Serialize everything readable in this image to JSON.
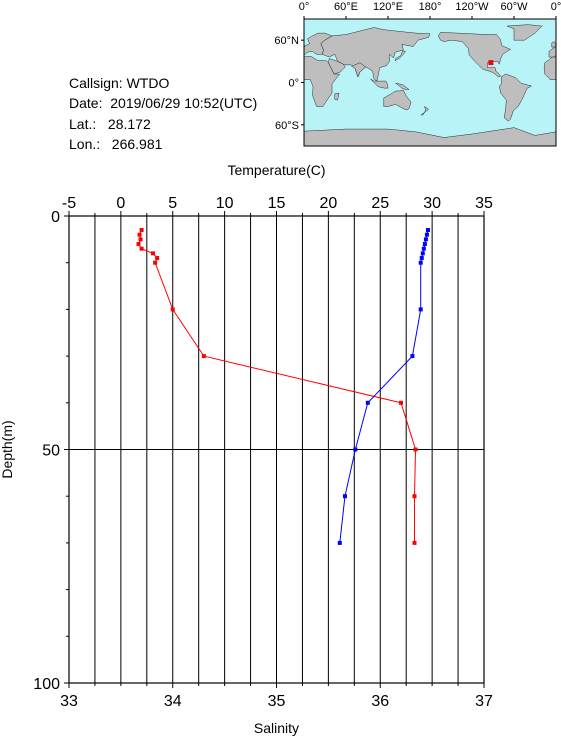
{
  "info": {
    "callsign": "Callsign: WTDO",
    "date": "Date:  2019/06/29 10:52(UTC)",
    "lat": "Lat.:   28.172",
    "lon": "Lon.:   266.981"
  },
  "map": {
    "lon_labels": [
      "0°",
      "60°E",
      "120°E",
      "180°",
      "120°W",
      "60°W",
      "0°"
    ],
    "lat_labels": [
      "60°N",
      "0°",
      "60°S"
    ],
    "ocean_color": "#b8f3f8",
    "land_color": "#bebebe",
    "marker_color": "#ff0000",
    "marker": {
      "lat": 28.172,
      "lon": 266.981
    }
  },
  "chart_data": {
    "type": "line",
    "top_axis_title": "Temperature(C)",
    "bottom_axis_title": "Salinity",
    "y_axis_title": "Depth(m)",
    "x_top": {
      "range": [
        -5,
        35
      ],
      "ticks": [
        -5,
        0,
        5,
        10,
        15,
        20,
        25,
        30,
        35
      ]
    },
    "x_bottom": {
      "range": [
        33,
        37
      ],
      "ticks": [
        33,
        34,
        35,
        36,
        37
      ]
    },
    "y": {
      "range": [
        0,
        100
      ],
      "inverted": true,
      "ticks": [
        0,
        50,
        100
      ]
    },
    "grid": true,
    "series": [
      {
        "axis": "top",
        "color": "#ff0000",
        "points": [
          [
            2.0,
            3
          ],
          [
            1.8,
            4
          ],
          [
            1.9,
            5
          ],
          [
            1.7,
            6
          ],
          [
            2.0,
            7
          ],
          [
            3.1,
            8
          ],
          [
            3.5,
            9
          ],
          [
            3.3,
            10
          ],
          [
            5.0,
            20
          ],
          [
            8.0,
            30
          ],
          [
            27.0,
            40
          ],
          [
            28.4,
            50
          ],
          [
            28.3,
            60
          ],
          [
            28.3,
            70
          ]
        ]
      },
      {
        "axis": "top",
        "color": "#0000ff",
        "points": [
          [
            29.6,
            3
          ],
          [
            29.5,
            4
          ],
          [
            29.4,
            5
          ],
          [
            29.3,
            6
          ],
          [
            29.2,
            7
          ],
          [
            29.1,
            8
          ],
          [
            29.0,
            9
          ],
          [
            28.9,
            10
          ],
          [
            28.9,
            20
          ],
          [
            28.1,
            30
          ],
          [
            23.8,
            40
          ],
          [
            22.6,
            50
          ],
          [
            21.6,
            60
          ],
          [
            21.1,
            70
          ]
        ]
      }
    ]
  }
}
